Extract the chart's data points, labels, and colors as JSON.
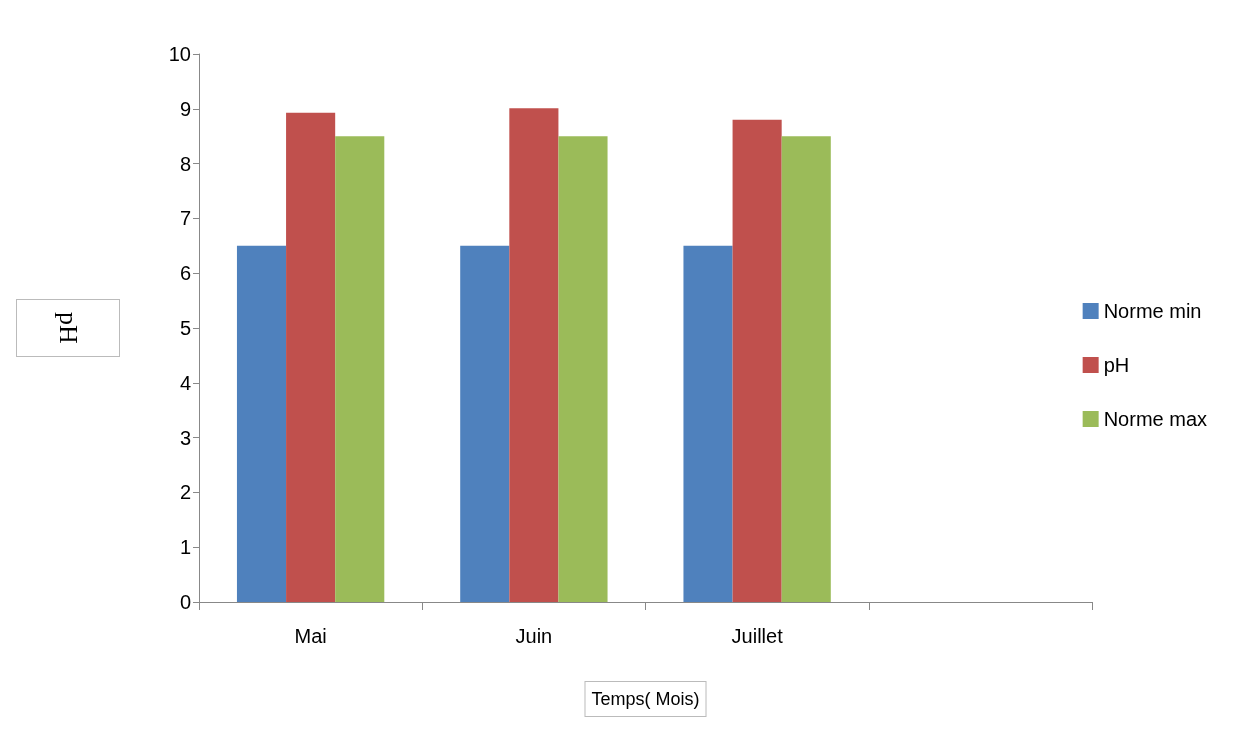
{
  "chart_data": {
    "type": "bar",
    "xlabel": "Temps( Mois)",
    "ylabel": "pH",
    "categories": [
      "Mai",
      "Juin",
      "Juillet",
      null
    ],
    "series": [
      {
        "name": "Norme min",
        "color": "#4f81bd",
        "values": [
          6.5,
          6.5,
          6.5,
          null
        ]
      },
      {
        "name": "pH",
        "color": "#c0504d",
        "values": [
          8.93,
          9.01,
          8.8,
          null
        ]
      },
      {
        "name": "Norme max",
        "color": "#9bbb59",
        "values": [
          8.5,
          8.5,
          8.5,
          null
        ]
      }
    ],
    "ylim": [
      0,
      10
    ],
    "yticks": [
      0,
      1,
      2,
      3,
      4,
      5,
      6,
      7,
      8,
      9,
      10
    ],
    "grid": false,
    "legend": "right"
  }
}
